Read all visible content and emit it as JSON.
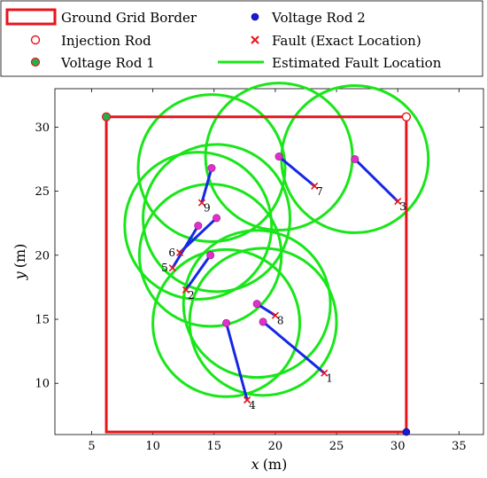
{
  "chart_data": {
    "type": "scatter",
    "xlabel_var": "x",
    "xlabel_unit": "(m)",
    "ylabel_var": "y",
    "ylabel_unit": "(m)",
    "xlim": [
      2,
      37
    ],
    "ylim": [
      6,
      33
    ],
    "xticks": [
      5,
      10,
      15,
      20,
      25,
      30,
      35
    ],
    "yticks": [
      10,
      15,
      20,
      25,
      30
    ],
    "grid": false,
    "legend": [
      {
        "key": "border",
        "label": "Ground Grid Border"
      },
      {
        "key": "voltage2",
        "label": "Voltage Rod 2"
      },
      {
        "key": "injection",
        "label": "Injection Rod"
      },
      {
        "key": "fault",
        "label": "Fault (Exact Location)"
      },
      {
        "key": "voltage1",
        "label": "Voltage Rod 1"
      },
      {
        "key": "circle",
        "label": "Estimated Fault Location"
      }
    ],
    "colors": {
      "border": "#e8141c",
      "injection": "#e8141c",
      "voltage1": "#22b14c",
      "voltage2": "#1a1ad6",
      "fault": "#e8141c",
      "circle": "#19e619",
      "line": "#1428e6",
      "center": "#e030c8"
    },
    "border": {
      "x0": 6.2,
      "y0": 6.2,
      "x1": 30.7,
      "y1": 30.8
    },
    "injection_rod": {
      "x": 30.7,
      "y": 30.8
    },
    "voltage_rod_1": {
      "x": 6.2,
      "y": 30.8
    },
    "voltage_rod_2": {
      "x": 30.7,
      "y": 6.2
    },
    "faults": [
      {
        "label": "1",
        "x": 24.0,
        "y": 10.8,
        "cx": 19.0,
        "cy": 14.8,
        "r": 6.0
      },
      {
        "label": "2",
        "x": 12.7,
        "y": 17.3,
        "cx": 14.7,
        "cy": 20.0,
        "r": 5.8
      },
      {
        "label": "3",
        "x": 30.0,
        "y": 24.2,
        "cx": 26.5,
        "cy": 27.5,
        "r": 6.0
      },
      {
        "label": "4",
        "x": 17.7,
        "y": 8.7,
        "cx": 16.0,
        "cy": 14.7,
        "r": 6.0
      },
      {
        "label": "5",
        "x": 11.6,
        "y": 19.0,
        "cx": 13.7,
        "cy": 22.3,
        "r": 6.0
      },
      {
        "label": "6",
        "x": 12.2,
        "y": 20.2,
        "cx": 15.2,
        "cy": 22.9,
        "r": 6.0
      },
      {
        "label": "7",
        "x": 23.2,
        "y": 25.4,
        "cx": 20.3,
        "cy": 27.7,
        "r": 6.0
      },
      {
        "label": "8",
        "x": 20.0,
        "y": 15.3,
        "cx": 18.5,
        "cy": 16.2,
        "r": 6.0
      },
      {
        "label": "9",
        "x": 14.0,
        "y": 24.1,
        "cx": 14.8,
        "cy": 26.8,
        "r": 6.0
      }
    ]
  }
}
